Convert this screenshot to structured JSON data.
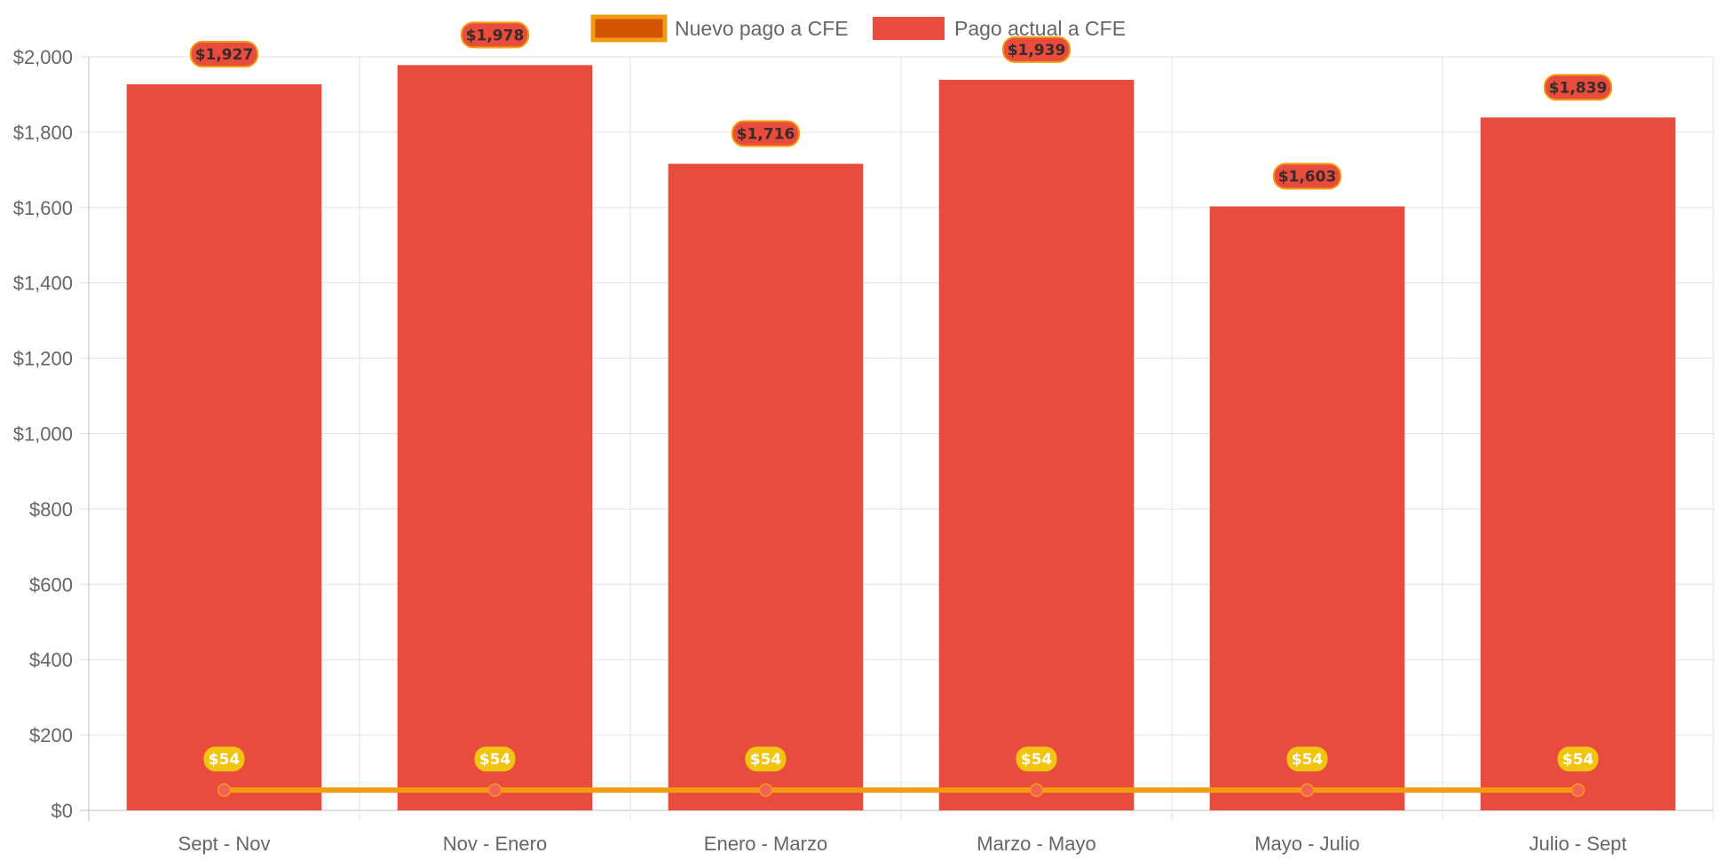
{
  "chart_data": {
    "type": "bar",
    "categories": [
      "Sept - Nov",
      "Nov - Enero",
      "Enero - Marzo",
      "Marzo - Mayo",
      "Mayo - Julio",
      "Julio - Sept"
    ],
    "series": [
      {
        "name": "Nuevo pago a CFE",
        "kind": "line",
        "values": [
          54,
          54,
          54,
          54,
          54,
          54
        ],
        "labels": [
          "$54",
          "$54",
          "$54",
          "$54",
          "$54",
          "$54"
        ],
        "color": "#f39c12",
        "fill": "#d35400"
      },
      {
        "name": "Pago actual a CFE",
        "kind": "bar",
        "values": [
          1927,
          1978,
          1716,
          1939,
          1603,
          1839
        ],
        "labels": [
          "$1,927",
          "$1,978",
          "$1,716",
          "$1,939",
          "$1,603",
          "$1,839"
        ],
        "color": "#e74c3c"
      }
    ],
    "ylim": [
      0,
      2000
    ],
    "yticks": [
      0,
      200,
      400,
      600,
      800,
      1000,
      1200,
      1400,
      1600,
      1800,
      2000
    ],
    "ytick_labels": [
      "$0",
      "$200",
      "$400",
      "$600",
      "$800",
      "$1,000",
      "$1,200",
      "$1,400",
      "$1,600",
      "$1,800",
      "$2,000"
    ],
    "legend_position": "top-center",
    "grid": true,
    "title": "",
    "xlabel": "",
    "ylabel": ""
  }
}
